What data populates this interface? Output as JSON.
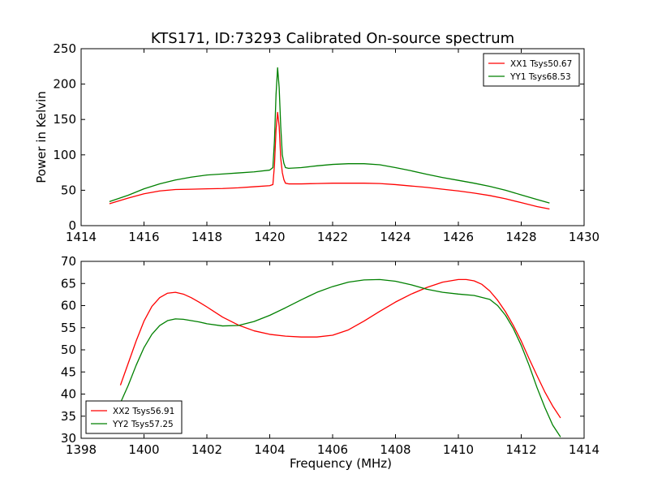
{
  "figure": {
    "title": "KTS171, ID:73293 Calibrated On-source spectrum"
  },
  "chart_data": [
    {
      "type": "line",
      "xlabel": "",
      "ylabel": "Power in Kelvin",
      "xlim": [
        1414,
        1430
      ],
      "ylim": [
        0,
        250
      ],
      "xticks": [
        1414,
        1416,
        1418,
        1420,
        1422,
        1424,
        1426,
        1428,
        1430
      ],
      "yticks": [
        0,
        50,
        100,
        150,
        200,
        250
      ],
      "legend_position": "top-right",
      "grid": false,
      "series": [
        {
          "name": "XX1 Tsys50.67",
          "color": "#ff0000",
          "x": [
            1414.9,
            1415.5,
            1416.0,
            1416.5,
            1417.0,
            1417.5,
            1418.0,
            1418.5,
            1419.0,
            1419.5,
            1420.0,
            1420.1,
            1420.15,
            1420.2,
            1420.25,
            1420.3,
            1420.35,
            1420.4,
            1420.45,
            1420.5,
            1420.6,
            1421.0,
            1421.5,
            1422.0,
            1422.5,
            1423.0,
            1423.5,
            1424.0,
            1424.5,
            1425.0,
            1425.5,
            1426.0,
            1426.5,
            1427.0,
            1427.5,
            1428.0,
            1428.5,
            1428.9
          ],
          "y": [
            31,
            39,
            45,
            49,
            51,
            51.5,
            52,
            52.5,
            53.5,
            55,
            56.5,
            58,
            85,
            135,
            160,
            140,
            95,
            75,
            65,
            60,
            59,
            59,
            59.5,
            60,
            60,
            60,
            59.5,
            58,
            56,
            54,
            51.5,
            49,
            46,
            42.5,
            38,
            32.5,
            27,
            23.5
          ]
        },
        {
          "name": "YY1 Tsys68.53",
          "color": "#008000",
          "x": [
            1414.9,
            1415.5,
            1416.0,
            1416.5,
            1417.0,
            1417.5,
            1418.0,
            1418.5,
            1419.0,
            1419.5,
            1420.0,
            1420.1,
            1420.15,
            1420.2,
            1420.25,
            1420.3,
            1420.35,
            1420.4,
            1420.45,
            1420.5,
            1420.6,
            1421.0,
            1421.5,
            1422.0,
            1422.5,
            1423.0,
            1423.5,
            1424.0,
            1424.5,
            1425.0,
            1425.5,
            1426.0,
            1426.5,
            1427.0,
            1427.5,
            1428.0,
            1428.5,
            1428.9
          ],
          "y": [
            34,
            43,
            52,
            59,
            64.5,
            68.5,
            71.5,
            73,
            74.5,
            76,
            78.5,
            82,
            120,
            185,
            223,
            195,
            140,
            100,
            88,
            82,
            81,
            82,
            84.5,
            86.5,
            87.5,
            87.5,
            86,
            82,
            77.5,
            72.5,
            68,
            64,
            60,
            55.5,
            50,
            43.5,
            37,
            32
          ]
        }
      ]
    },
    {
      "type": "line",
      "xlabel": "Frequency (MHz)",
      "ylabel": "",
      "xlim": [
        1398,
        1414
      ],
      "ylim": [
        30,
        70
      ],
      "xticks": [
        1398,
        1400,
        1402,
        1404,
        1406,
        1408,
        1410,
        1412,
        1414
      ],
      "yticks": [
        30,
        35,
        40,
        45,
        50,
        55,
        60,
        65,
        70
      ],
      "legend_position": "bottom-left",
      "grid": false,
      "series": [
        {
          "name": "XX2 Tsys56.91",
          "color": "#ff0000",
          "x": [
            1399.25,
            1399.5,
            1399.75,
            1400.0,
            1400.25,
            1400.5,
            1400.75,
            1401.0,
            1401.25,
            1401.5,
            1401.75,
            1402.0,
            1402.5,
            1403.0,
            1403.5,
            1404.0,
            1404.5,
            1405.0,
            1405.5,
            1406.0,
            1406.5,
            1407.0,
            1407.5,
            1408.0,
            1408.5,
            1409.0,
            1409.5,
            1410.0,
            1410.25,
            1410.5,
            1410.75,
            1411.0,
            1411.25,
            1411.5,
            1411.75,
            1412.0,
            1412.25,
            1412.5,
            1412.75,
            1413.0,
            1413.25
          ],
          "y": [
            42,
            47,
            52,
            56.5,
            59.8,
            61.8,
            62.8,
            63,
            62.6,
            61.8,
            60.8,
            59.7,
            57.4,
            55.6,
            54.3,
            53.5,
            53.1,
            52.9,
            52.9,
            53.3,
            54.5,
            56.5,
            58.7,
            60.8,
            62.6,
            64.1,
            65.3,
            65.9,
            65.9,
            65.6,
            64.8,
            63.3,
            61.2,
            58.6,
            55.5,
            52,
            48,
            44.2,
            40.5,
            37.3,
            34.6
          ]
        },
        {
          "name": "YY2 Tsys57.25",
          "color": "#008000",
          "x": [
            1399.25,
            1399.5,
            1399.75,
            1400.0,
            1400.25,
            1400.5,
            1400.75,
            1401.0,
            1401.25,
            1401.5,
            1401.75,
            1402.0,
            1402.5,
            1403.0,
            1403.5,
            1404.0,
            1404.5,
            1405.0,
            1405.5,
            1406.0,
            1406.5,
            1407.0,
            1407.5,
            1408.0,
            1408.5,
            1409.0,
            1409.5,
            1410.0,
            1410.5,
            1411.0,
            1411.25,
            1411.5,
            1411.75,
            1412.0,
            1412.25,
            1412.5,
            1412.75,
            1413.0,
            1413.25
          ],
          "y": [
            38,
            42,
            46.5,
            50.5,
            53.5,
            55.5,
            56.6,
            57,
            56.9,
            56.6,
            56.3,
            55.9,
            55.4,
            55.5,
            56.4,
            57.8,
            59.5,
            61.3,
            63,
            64.3,
            65.3,
            65.8,
            65.9,
            65.5,
            64.7,
            63.7,
            63,
            62.6,
            62.3,
            61.4,
            60,
            57.8,
            54.8,
            51,
            46.5,
            41.5,
            37,
            33,
            30.3
          ]
        }
      ]
    }
  ]
}
